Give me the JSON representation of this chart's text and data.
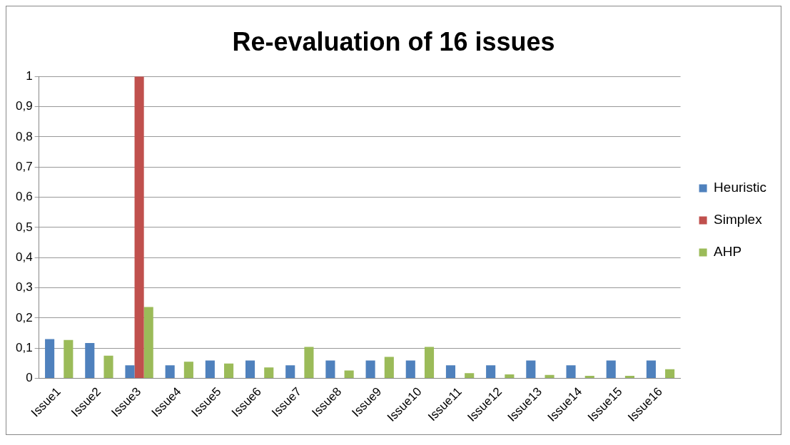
{
  "chart_data": {
    "type": "bar",
    "title": "Re-evaluation of 16 issues",
    "categories": [
      "Issue1",
      "Issue2",
      "Issue3",
      "Issue4",
      "Issue5",
      "Issue6",
      "Issue7",
      "Issue8",
      "Issue9",
      "Issue10",
      "Issue11",
      "Issue12",
      "Issue13",
      "Issue14",
      "Issue15",
      "Issue16"
    ],
    "series": [
      {
        "name": "Heuristic",
        "color": "#4f81bd",
        "values": [
          0.13,
          0.117,
          0.043,
          0.043,
          0.059,
          0.059,
          0.043,
          0.059,
          0.059,
          0.059,
          0.043,
          0.043,
          0.059,
          0.043,
          0.059,
          0.059
        ]
      },
      {
        "name": "Simplex",
        "color": "#c0504d",
        "values": [
          0,
          0,
          1,
          0,
          0,
          0,
          0,
          0,
          0,
          0,
          0,
          0,
          0,
          0,
          0,
          0
        ]
      },
      {
        "name": "AHP",
        "color": "#9bbb59",
        "values": [
          0.127,
          0.075,
          0.236,
          0.055,
          0.049,
          0.036,
          0.104,
          0.026,
          0.071,
          0.104,
          0.017,
          0.013,
          0.011,
          0.008,
          0.008,
          0.03
        ]
      }
    ],
    "ylim": [
      0,
      1
    ],
    "yticks": [
      0,
      {
        "value": 0.1,
        "label": "0,1"
      },
      {
        "value": 0.2,
        "label": "0,2"
      },
      {
        "value": 0.3,
        "label": "0,3"
      },
      {
        "value": 0.4,
        "label": "0,4"
      },
      {
        "value": 0.5,
        "label": "0,5"
      },
      {
        "value": 0.6,
        "label": "0,6"
      },
      {
        "value": 0.7,
        "label": "0,7"
      },
      {
        "value": 0.8,
        "label": "0,8"
      },
      {
        "value": 0.9,
        "label": "0,9"
      },
      1
    ],
    "grid": "y",
    "legend": "right"
  }
}
